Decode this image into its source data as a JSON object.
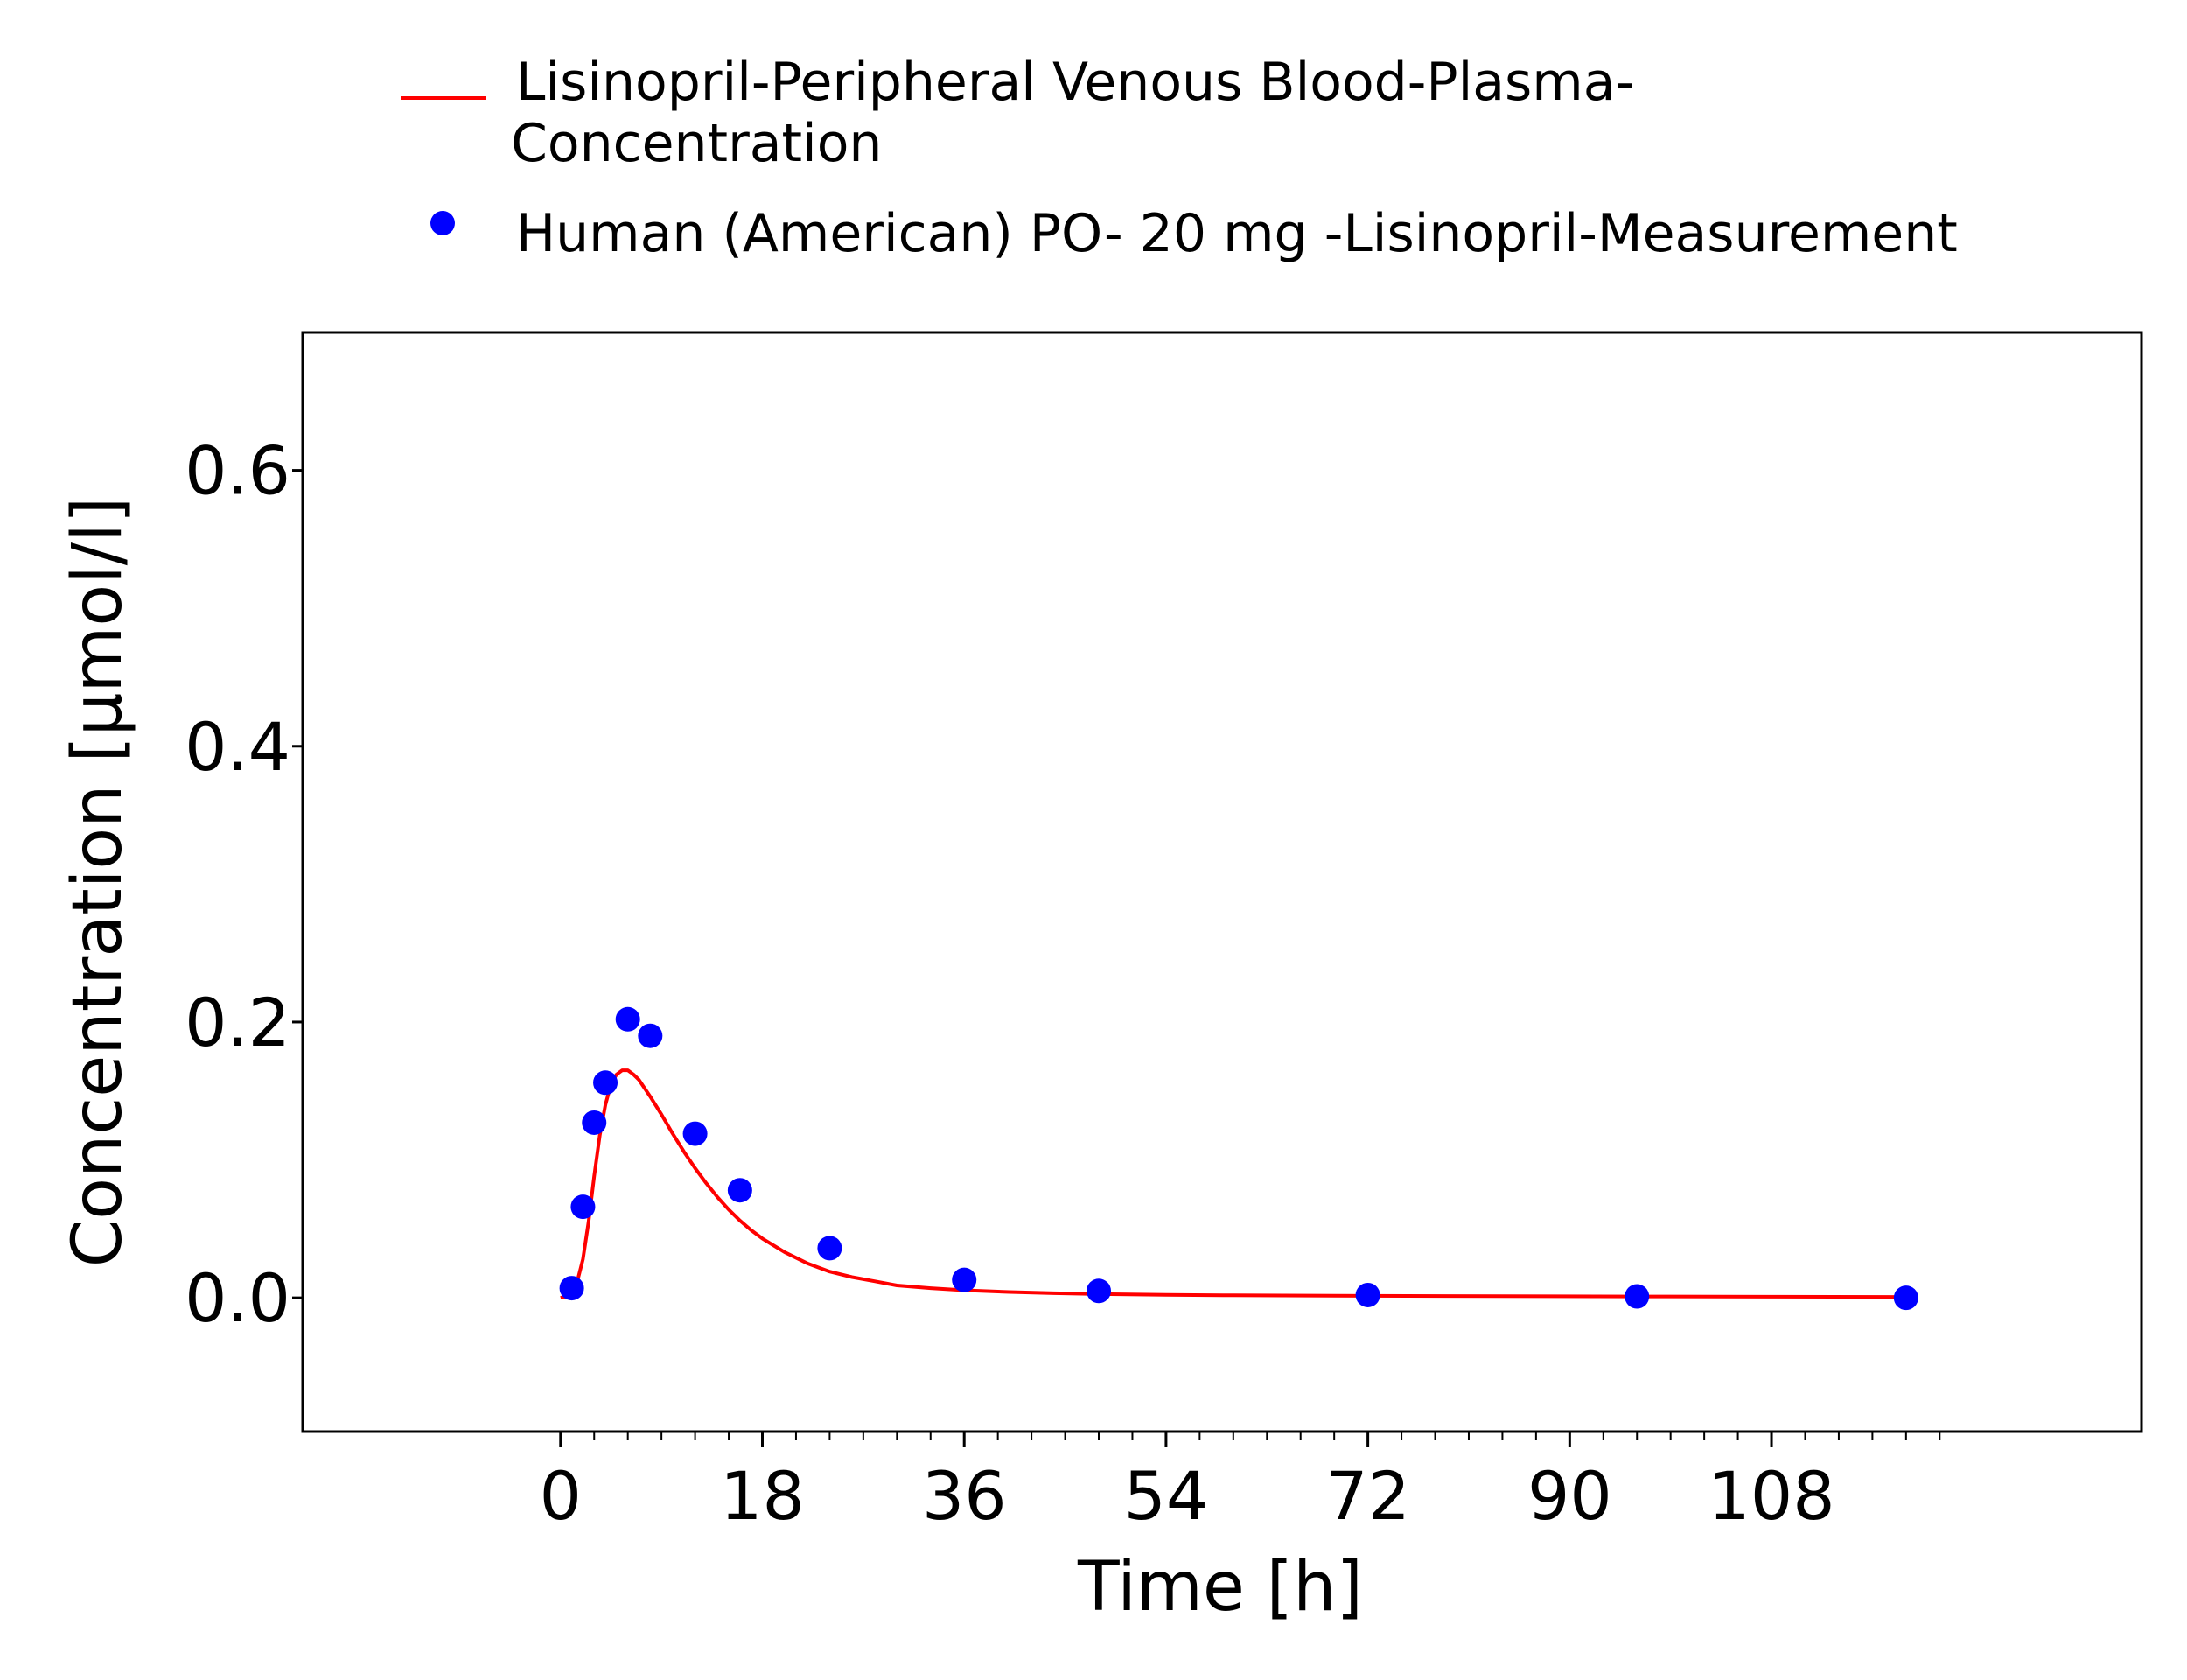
{
  "chart_data": {
    "type": "line",
    "xlabel": "Time [h]",
    "ylabel": "Concentration [µmol/l]",
    "xlim": [
      -23,
      141
    ],
    "ylim": [
      -0.097,
      0.7
    ],
    "x_ticks": [
      0,
      18,
      36,
      54,
      72,
      90,
      108
    ],
    "x_tick_labels": [
      "0",
      "18",
      "36",
      "54",
      "72",
      "90",
      "108"
    ],
    "x_minor_step": 3,
    "y_ticks": [
      0.0,
      0.2,
      0.4,
      0.6
    ],
    "y_tick_labels": [
      "0.0",
      "0.2",
      "0.4",
      "0.6"
    ],
    "grid": false,
    "legend_position": "top",
    "legend": [
      {
        "type": "line",
        "color": "#ff0000",
        "lines": [
          "Lisinopril-Peripheral Venous Blood-Plasma-",
          "Concentration"
        ]
      },
      {
        "type": "marker",
        "color": "#0000ff",
        "lines": [
          "Human (American) PO- 20 mg -Lisinopril-Measurement"
        ]
      }
    ],
    "series": [
      {
        "name": "Lisinopril-Peripheral Venous Blood-Plasma-Concentration",
        "type": "line",
        "color": "#ff0000",
        "x": [
          0,
          0.5,
          1,
          1.5,
          2,
          2.5,
          3,
          3.5,
          4,
          4.5,
          5,
          5.5,
          6,
          6.5,
          7,
          7.5,
          8,
          9,
          10,
          11,
          12,
          13,
          14,
          15,
          16,
          17,
          18,
          20,
          22,
          24,
          26,
          28,
          30,
          33,
          36,
          40,
          44,
          48,
          54,
          60,
          72,
          84,
          96,
          108,
          120
        ],
        "y": [
          0.0,
          0.001,
          0.004,
          0.012,
          0.028,
          0.055,
          0.088,
          0.118,
          0.14,
          0.155,
          0.162,
          0.165,
          0.165,
          0.162,
          0.158,
          0.152,
          0.146,
          0.133,
          0.119,
          0.106,
          0.094,
          0.083,
          0.073,
          0.064,
          0.056,
          0.049,
          0.043,
          0.033,
          0.025,
          0.019,
          0.015,
          0.012,
          0.009,
          0.007,
          0.0055,
          0.0042,
          0.0033,
          0.0027,
          0.0022,
          0.0018,
          0.0014,
          0.0012,
          0.001,
          0.0008,
          0.0006
        ]
      },
      {
        "name": "Human (American) PO- 20 mg -Lisinopril-Measurement",
        "type": "scatter",
        "color": "#0000ff",
        "x": [
          1,
          2,
          3,
          4,
          6,
          8,
          12,
          16,
          24,
          36,
          48,
          72,
          96,
          120
        ],
        "y": [
          0.007,
          0.066,
          0.127,
          0.156,
          0.202,
          0.19,
          0.119,
          0.078,
          0.036,
          0.013,
          0.005,
          0.002,
          0.001,
          0.0
        ]
      }
    ]
  }
}
